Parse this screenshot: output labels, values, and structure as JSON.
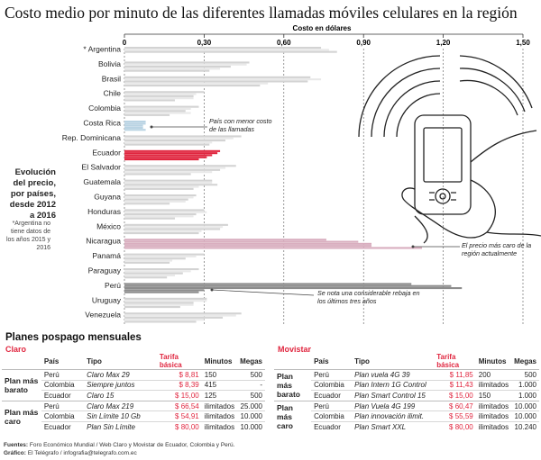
{
  "title": "Costo medio por minuto de las diferentes llamadas móviles celulares en la región",
  "side_title": "Evolución del precio, por países, desde 2012 a 2016",
  "side_note": "*Argentina no tiene datos de los años 2015 y 2016",
  "annotations": {
    "costa_rica": "País con menor costo de las llamadas",
    "nicaragua": "El precio más caro de la región actualmente",
    "peru": "Se nota una considerable rebaja en los últimos tres años"
  },
  "colors": {
    "accent": "#e0263f",
    "bar_gray": "#d3d3d3",
    "bar_light": "#e9e9e9",
    "costa_rica": "#b9d3e3",
    "nicaragua": "#d9aebf",
    "peru": "#8c8c8c"
  },
  "chart_data": {
    "type": "bar",
    "orientation": "horizontal",
    "xlabel": "Costo en dólares",
    "xlim": [
      0,
      1.5
    ],
    "xticks": [
      "0",
      "0,30",
      "0,60",
      "0,90",
      "1,20",
      "1,50"
    ],
    "grid": "dashed-vertical",
    "categories": [
      "* Argentina",
      "Bolivia",
      "Brasil",
      "Chile",
      "Colombia",
      "Costa Rica",
      "Rep. Dominicana",
      "Ecuador",
      "El Salvador",
      "Guatemala",
      "Guyana",
      "Honduras",
      "México",
      "Nicaragua",
      "Panamá",
      "Paraguay",
      "Perú",
      "Uruguay",
      "Venezuela"
    ],
    "series": [
      {
        "values": [
          0.74,
          0.47,
          0.7,
          0.3,
          0.28,
          0.08,
          0.44,
          0.36,
          0.42,
          0.33,
          0.27,
          0.3,
          0.39,
          0.76,
          0.3,
          0.28,
          1.08,
          0.31,
          0.44
        ]
      },
      {
        "values": [
          0.77,
          0.46,
          0.74,
          0.27,
          0.25,
          0.08,
          0.41,
          0.35,
          0.38,
          0.33,
          0.26,
          0.31,
          0.37,
          0.88,
          0.27,
          0.25,
          1.23,
          0.31,
          0.42
        ]
      },
      {
        "values": [
          0.8,
          0.4,
          0.69,
          0.26,
          0.23,
          0.07,
          0.38,
          0.33,
          0.36,
          0.35,
          0.24,
          0.27,
          0.36,
          0.93,
          0.23,
          0.22,
          1.27,
          0.26,
          0.37
        ]
      },
      {
        "values": [
          null,
          0.36,
          0.54,
          0.26,
          0.25,
          0.07,
          0.33,
          0.31,
          0.33,
          0.28,
          0.23,
          0.26,
          0.29,
          0.93,
          0.18,
          0.19,
          0.3,
          0.26,
          0.3
        ]
      },
      {
        "values": [
          null,
          0.32,
          0.51,
          0.19,
          0.17,
          0.08,
          0.32,
          0.28,
          0.25,
          0.26,
          0.17,
          0.19,
          0.28,
          1.12,
          0.17,
          0.16,
          0.28,
          0.21,
          0.27
        ]
      }
    ]
  },
  "plans": {
    "heading": "Planes pospago mensuales",
    "headers": {
      "country": "País",
      "type": "Tipo",
      "price": "Tarifa básica",
      "minutes": "Minutos",
      "megas": "Megas"
    },
    "groups": {
      "cheap": "Plan más barato",
      "expensive": "Plan más caro"
    },
    "claro": {
      "name": "Claro",
      "rows": [
        {
          "country": "Perú",
          "type": "Claro Max 29",
          "price": "$ 8,81",
          "minutes": "150",
          "megas": "500"
        },
        {
          "country": "Colombia",
          "type": "Siempre juntos",
          "price": "$ 8,39",
          "minutes": "415",
          "megas": "-"
        },
        {
          "country": "Ecuador",
          "type": "Claro 15",
          "price": "$ 15,00",
          "minutes": "125",
          "megas": "500"
        },
        {
          "country": "Perú",
          "type": "Claro Max 219",
          "price": "$ 66,54",
          "minutes": "ilimitados",
          "megas": "25.000"
        },
        {
          "country": "Colombia",
          "type": "Sin Límite 10 Gb",
          "price": "$ 54,91",
          "minutes": "ilimitados",
          "megas": "10.000"
        },
        {
          "country": "Ecuador",
          "type": "Plan Sin Límite",
          "price": "$ 80,00",
          "minutes": "ilimitados",
          "megas": "10.000"
        }
      ]
    },
    "movistar": {
      "name": "Movistar",
      "rows": [
        {
          "country": "Perú",
          "type": "Plan vuela 4G 39",
          "price": "$ 11,85",
          "minutes": "200",
          "megas": "500"
        },
        {
          "country": "Colombia",
          "type": "Plan Intern 1G Control",
          "price": "$ 11,43",
          "minutes": "ilimitados",
          "megas": "1.000"
        },
        {
          "country": "Ecuador",
          "type": "Plan Smart Control 15",
          "price": "$ 15,00",
          "minutes": "150",
          "megas": "1.000"
        },
        {
          "country": "Perú",
          "type": "Plan Vuela 4G 199",
          "price": "$ 60,47",
          "minutes": "ilimitados",
          "megas": "10.000"
        },
        {
          "country": "Colombia",
          "type": "Plan innovación ilimit.",
          "price": "$ 55,59",
          "minutes": "ilimitados",
          "megas": "10.000"
        },
        {
          "country": "Ecuador",
          "type": "Plan Smart XXL",
          "price": "$ 80,00",
          "minutes": "ilimitados",
          "megas": "10.240"
        }
      ]
    }
  },
  "footer": {
    "sources_label": "Fuentes:",
    "sources": "Foro Económico Mundial / Web Claro y Movistar de Ecuador, Colombia y Perú.",
    "graphic_label": "Gráfico:",
    "graphic": "El Telégrafo / infografia@telegrafo.com.ec"
  }
}
